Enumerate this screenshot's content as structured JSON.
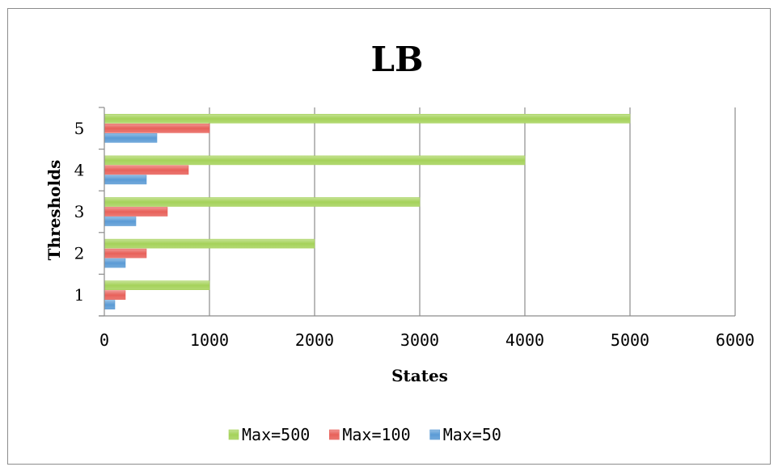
{
  "chart_data": {
    "type": "bar",
    "orientation": "horizontal",
    "title": "LB",
    "xlabel": "States",
    "ylabel": "Thresholds",
    "categories": [
      "1",
      "2",
      "3",
      "4",
      "5"
    ],
    "series": [
      {
        "name": "Max=50",
        "color": "#5b9bd5",
        "values": [
          100,
          200,
          300,
          400,
          500
        ]
      },
      {
        "name": "Max=100",
        "color": "#e8615a",
        "values": [
          200,
          400,
          600,
          800,
          1000
        ]
      },
      {
        "name": "Max=500",
        "color": "#a5d25a",
        "values": [
          1000,
          2000,
          3000,
          4000,
          5000
        ]
      }
    ],
    "xlim": [
      0,
      6000
    ],
    "xticks": [
      "0",
      "1000",
      "2000",
      "3000",
      "4000",
      "5000",
      "6000"
    ],
    "grid": "vertical",
    "legend_position": "bottom",
    "legend_order": [
      "Max=500",
      "Max=100",
      "Max=50"
    ]
  }
}
